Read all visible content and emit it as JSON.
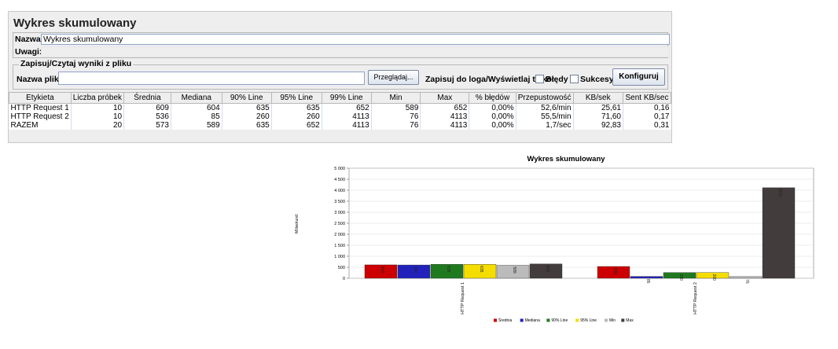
{
  "panel": {
    "title": "Wykres skumulowany",
    "name_label": "Nazwa:",
    "name_value": "Wykres skumulowany",
    "comments_label": "Uwagi:",
    "file_group_title": "Zapisuj/Czytaj wyniki z pliku",
    "file_label": "Nazwa pliku",
    "browse_button": "Przeglądaj...",
    "log_label": "Zapisuj do loga/Wyświetlaj tylko:",
    "errors_label": "Błędy",
    "success_label": "Sukcesy",
    "configure_button": "Konfiguruj"
  },
  "table": {
    "columns": [
      "Etykieta",
      "Liczba próbek",
      "Średnia",
      "Mediana",
      "90% Line",
      "95% Line",
      "99% Line",
      "Min",
      "Max",
      "% błędów",
      "Przepustowość",
      "KB/sek",
      "Sent KB/sec"
    ],
    "rows": [
      [
        "HTTP Request 1",
        "10",
        "609",
        "604",
        "635",
        "635",
        "652",
        "589",
        "652",
        "0,00%",
        "52,6/min",
        "25,61",
        "0,16"
      ],
      [
        "HTTP Request 2",
        "10",
        "536",
        "85",
        "260",
        "260",
        "4113",
        "76",
        "4113",
        "0,00%",
        "55,5/min",
        "71,60",
        "0,17"
      ],
      [
        "RAZEM",
        "20",
        "573",
        "589",
        "635",
        "652",
        "4113",
        "76",
        "4113",
        "0,00%",
        "1,7/sec",
        "92,83",
        "0,31"
      ]
    ]
  },
  "chart_data": {
    "type": "bar",
    "title": "Wykres skumulowany",
    "ylabel": "Milisekund",
    "xlabel": "",
    "categories": [
      "HTTP Request 1",
      "HTTP Request 2"
    ],
    "series": [
      {
        "name": "Średnia",
        "color": "#cc0000",
        "values": [
          609,
          536
        ]
      },
      {
        "name": "Mediana",
        "color": "#2222bb",
        "values": [
          604,
          85
        ]
      },
      {
        "name": "90% Line",
        "color": "#1f7a1f",
        "values": [
          635,
          260
        ]
      },
      {
        "name": "95% Line",
        "color": "#f5dd00",
        "values": [
          635,
          260
        ]
      },
      {
        "name": "Min",
        "color": "#bbbbbb",
        "values": [
          589,
          76
        ]
      },
      {
        "name": "Max",
        "color": "#423c3c",
        "values": [
          652,
          4113
        ]
      }
    ],
    "ylim": [
      0,
      5000
    ],
    "yticks": [
      "0",
      "500",
      "1 000",
      "1 500",
      "2 000",
      "2 500",
      "3 000",
      "3 500",
      "4 000",
      "4 500",
      "5 000"
    ],
    "grid": true,
    "legend_position": "bottom"
  }
}
